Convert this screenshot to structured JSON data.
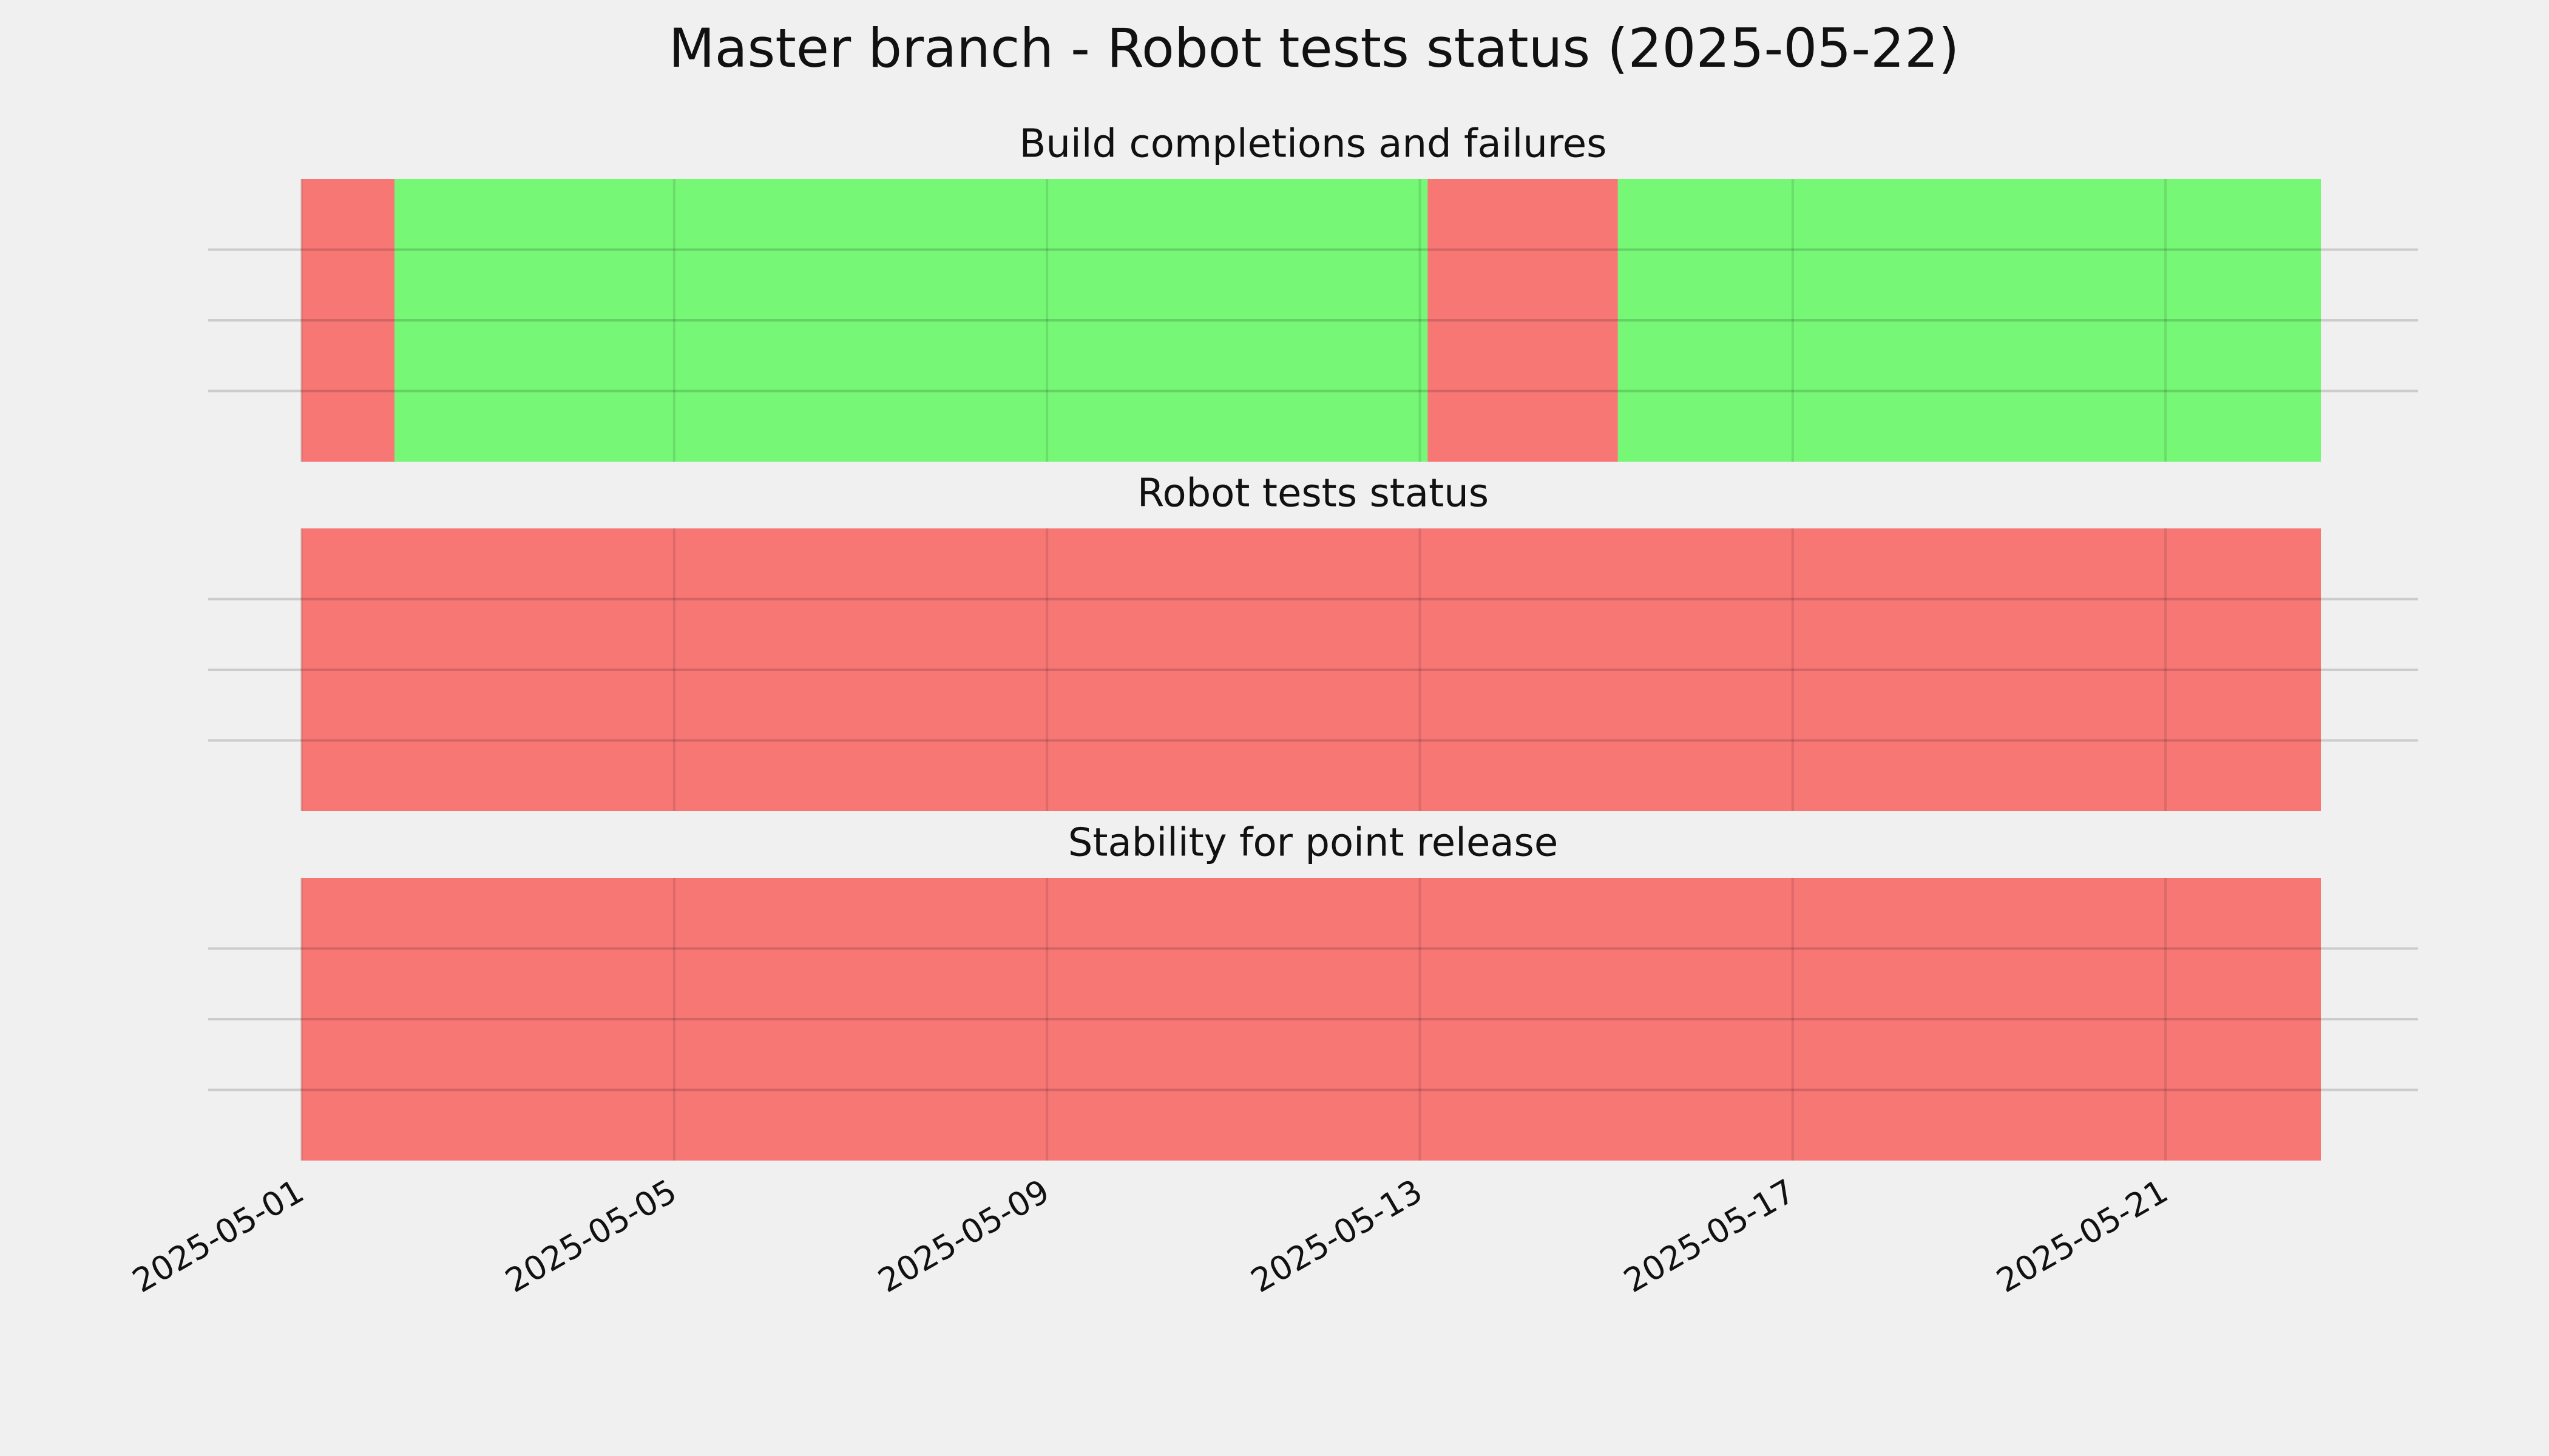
{
  "title": "Master branch - Robot tests status (2025-05-22)",
  "chart_data": [
    {
      "type": "timeline",
      "title": "Build completions and failures",
      "segments": [
        {
          "start": "2025-05-01",
          "end": "2025-05-02",
          "color": "#f77775"
        },
        {
          "start": "2025-05-02",
          "end": "2025-05-13T02:00",
          "color": "#76f776"
        },
        {
          "start": "2025-05-13T02:00",
          "end": "2025-05-15T03:00",
          "color": "#f77775"
        },
        {
          "start": "2025-05-15T03:00",
          "end": "2025-05-22T16:00",
          "color": "#76f776"
        }
      ],
      "xlim": [
        "2025-04-30",
        "2025-05-23T17:00"
      ],
      "xticks": [
        "2025-05-01",
        "2025-05-05",
        "2025-05-09",
        "2025-05-13",
        "2025-05-17",
        "2025-05-21"
      ],
      "ylim": [
        0,
        1
      ],
      "yticks": [
        0.25,
        0.5,
        0.75
      ],
      "grid": true
    },
    {
      "type": "timeline",
      "title": "Robot tests status",
      "segments": [
        {
          "start": "2025-05-01",
          "end": "2025-05-22T16:00",
          "color": "#f77775"
        }
      ],
      "xlim": [
        "2025-04-30",
        "2025-05-23T17:00"
      ],
      "xticks": [
        "2025-05-01",
        "2025-05-05",
        "2025-05-09",
        "2025-05-13",
        "2025-05-17",
        "2025-05-21"
      ],
      "ylim": [
        0,
        1
      ],
      "yticks": [
        0.25,
        0.5,
        0.75
      ],
      "grid": true
    },
    {
      "type": "timeline",
      "title": "Stability for point release",
      "segments": [
        {
          "start": "2025-05-01",
          "end": "2025-05-22T16:00",
          "color": "#f77775"
        }
      ],
      "xlim": [
        "2025-04-30",
        "2025-05-23T17:00"
      ],
      "xticks": [
        "2025-05-01",
        "2025-05-05",
        "2025-05-09",
        "2025-05-13",
        "2025-05-17",
        "2025-05-21"
      ],
      "ylim": [
        0,
        1
      ],
      "yticks": [
        0.25,
        0.5,
        0.75
      ],
      "grid": true,
      "show_xtick_labels": true
    }
  ]
}
